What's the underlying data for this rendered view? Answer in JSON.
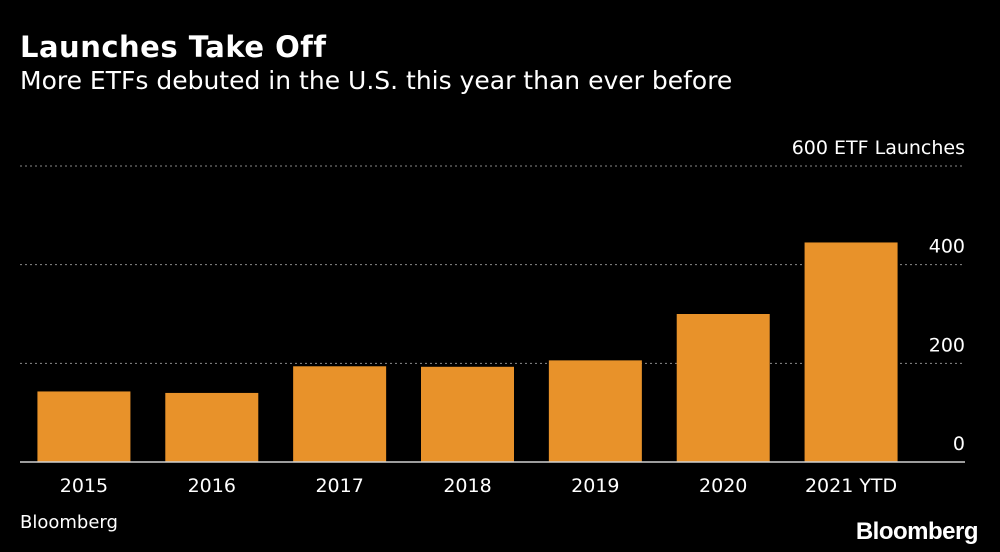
{
  "header": {
    "title": "Launches Take Off",
    "subtitle": "More ETFs debuted in the U.S. this year than ever before"
  },
  "footer": {
    "source": "Bloomberg",
    "logo": "Bloomberg"
  },
  "colors": {
    "background": "#000000",
    "bar": "#E8922A",
    "gridline": "#8a8a8a",
    "text": "#ffffff"
  },
  "chart_data": {
    "type": "bar",
    "categories": [
      "2015",
      "2016",
      "2017",
      "2018",
      "2019",
      "2020",
      "2021 YTD"
    ],
    "values": [
      143,
      140,
      194,
      193,
      206,
      300,
      445
    ],
    "ylabel": "ETF Launches",
    "ylim": [
      0,
      600
    ],
    "yticks": [
      0,
      200,
      400,
      600
    ],
    "ytick_labels": [
      "0",
      "200",
      "400",
      "600 ETF Launches"
    ],
    "grid": true,
    "axis_side": "right"
  }
}
